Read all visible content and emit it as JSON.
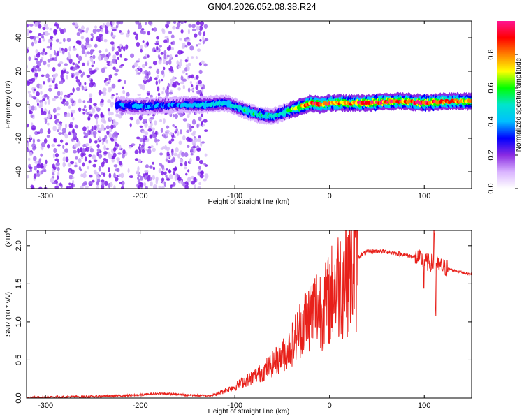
{
  "title": "GN04.2026.052.08.38.R24",
  "chart_data": [
    {
      "type": "heatmap",
      "xlabel": "Height of straight line (km)",
      "ylabel": "Frequency (Hz)",
      "xlim": [
        -320,
        150
      ],
      "ylim": [
        -50,
        50
      ],
      "xticks": [
        -300,
        -200,
        -100,
        0,
        100
      ],
      "yticks": [
        -40,
        -20,
        0,
        20,
        40
      ],
      "colorbar": {
        "label": "Normalized spectral amplitude",
        "range": [
          0,
          1
        ],
        "ticks": [
          "0.0",
          "0.2",
          "0.4",
          "0.6",
          "0.8"
        ],
        "colormap": [
          "#ffffff",
          "#d9b3ff",
          "#8a2be2",
          "#0000ff",
          "#00bfff",
          "#00e5cc",
          "#00ff00",
          "#ffff00",
          "#ff8000",
          "#ff0000",
          "#ff1493"
        ]
      },
      "ridge": [
        {
          "x": -225,
          "f": 0,
          "amp": 0.35
        },
        {
          "x": -200,
          "f": -1,
          "amp": 0.4
        },
        {
          "x": -160,
          "f": 0,
          "amp": 0.35
        },
        {
          "x": -130,
          "f": 0,
          "amp": 0.45
        },
        {
          "x": -110,
          "f": 1,
          "amp": 0.45
        },
        {
          "x": -90,
          "f": -3,
          "amp": 0.5
        },
        {
          "x": -75,
          "f": -6,
          "amp": 0.55
        },
        {
          "x": -60,
          "f": -7,
          "amp": 0.5
        },
        {
          "x": -50,
          "f": -5,
          "amp": 0.55
        },
        {
          "x": -40,
          "f": -3,
          "amp": 0.6
        },
        {
          "x": -30,
          "f": -1,
          "amp": 0.75
        },
        {
          "x": -20,
          "f": 1,
          "amp": 0.85
        },
        {
          "x": -10,
          "f": 0,
          "amp": 0.85
        },
        {
          "x": 0,
          "f": 1,
          "amp": 0.85
        },
        {
          "x": 20,
          "f": 1,
          "amp": 0.8
        },
        {
          "x": 40,
          "f": 1,
          "amp": 0.9
        },
        {
          "x": 60,
          "f": 2,
          "amp": 0.9
        },
        {
          "x": 80,
          "f": 2,
          "amp": 0.85
        },
        {
          "x": 100,
          "f": 1,
          "amp": 0.9
        },
        {
          "x": 120,
          "f": 2,
          "amp": 0.85
        },
        {
          "x": 150,
          "f": 2,
          "amp": 0.75
        }
      ],
      "noise_region": {
        "x_range": [
          -320,
          -130
        ],
        "amp": 0.25
      }
    },
    {
      "type": "line",
      "xlabel": "Height of straight line (km)",
      "ylabel": "SNR (10 * v/v)",
      "yscale_label": "(x10",
      "yscale_exp": "4",
      "xlim": [
        -320,
        150
      ],
      "ylim": [
        0,
        2.2
      ],
      "xticks": [
        -300,
        -200,
        -100,
        0,
        100
      ],
      "yticks": [
        "0.0",
        "0.5",
        "1.0",
        "1.5",
        "2.0"
      ],
      "color": "#e8201a",
      "series": [
        {
          "name": "SNR",
          "x": [
            -320,
            -250,
            -200,
            -180,
            -150,
            -130,
            -120,
            -110,
            -100,
            -90,
            -80,
            -70,
            -60,
            -50,
            -40,
            -30,
            -25,
            -20,
            -15,
            -10,
            -5,
            0,
            5,
            10,
            20,
            30,
            40,
            50,
            60,
            70,
            80,
            90,
            95,
            100,
            105,
            110,
            115,
            120,
            130,
            140,
            150
          ],
          "values": [
            0.01,
            0.02,
            0.04,
            0.06,
            0.04,
            0.03,
            0.05,
            0.1,
            0.15,
            0.22,
            0.28,
            0.35,
            0.45,
            0.55,
            0.7,
            0.95,
            1.05,
            1.1,
            1.2,
            1.2,
            1.2,
            1.3,
            1.45,
            1.5,
            1.75,
            1.85,
            1.92,
            1.93,
            1.92,
            1.9,
            1.88,
            1.85,
            1.83,
            1.8,
            1.77,
            1.78,
            1.73,
            1.72,
            1.68,
            1.65,
            1.62
          ]
        }
      ]
    }
  ]
}
